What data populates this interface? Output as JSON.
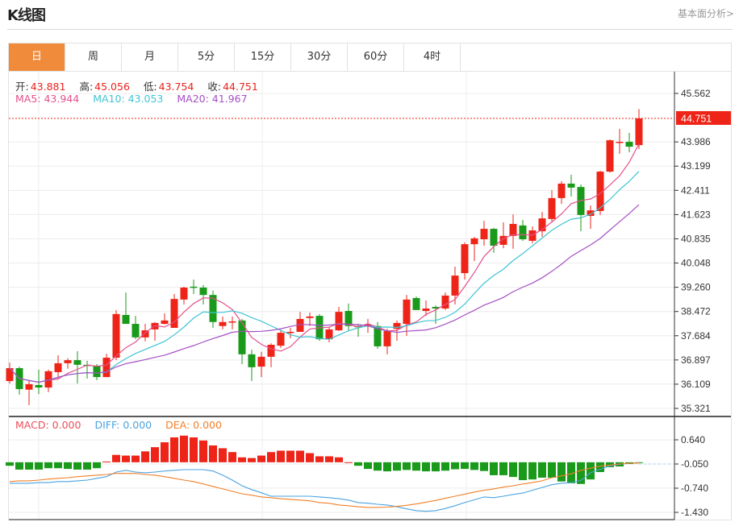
{
  "header": {
    "title": "K线图",
    "fundamental_link": "基本面分析>"
  },
  "tabs": [
    {
      "label": "日",
      "active": true
    },
    {
      "label": "周"
    },
    {
      "label": "月"
    },
    {
      "label": "5分"
    },
    {
      "label": "15分"
    },
    {
      "label": "30分"
    },
    {
      "label": "60分"
    },
    {
      "label": "4时"
    }
  ],
  "ohlc": {
    "open_label": "开:",
    "open": "43.881",
    "high_label": "高:",
    "high": "45.056",
    "low_label": "低:",
    "low": "43.754",
    "close_label": "收:",
    "close": "44.751"
  },
  "ma": {
    "ma5_label": "MA5: 43.944",
    "ma10_label": "MA10: 43.053",
    "ma20_label": "MA20: 41.967"
  },
  "macd_legend": {
    "macd": "MACD: 0.000",
    "diff": "DIFF: 0.000",
    "dea": "DEA: 0.000"
  },
  "colors": {
    "up": "#ee2418",
    "down": "#1a9a1a",
    "ma5": "#e4508c",
    "ma10": "#40c4d4",
    "ma20": "#a44fc4",
    "diff": "#4aa3e0",
    "dea": "#f0802a",
    "active_tab": "#f08b3c"
  },
  "chart_data": {
    "type": "candlestick",
    "price_axis": {
      "ticks": [
        "45.562",
        "44.774",
        "43.986",
        "43.199",
        "42.411",
        "41.623",
        "40.835",
        "40.048",
        "39.260",
        "38.472",
        "37.684",
        "36.897",
        "36.109",
        "35.321"
      ],
      "visible_ticks": [
        "45.562",
        "43.986",
        "43.199",
        "42.411",
        "41.623",
        "40.835",
        "40.048",
        "39.260",
        "38.472",
        "37.684",
        "36.897",
        "36.109",
        "35.321"
      ],
      "range": [
        35.321,
        45.562
      ]
    },
    "last_price": "44.751",
    "candles_ochl_note": "[open, close, high, low]",
    "candles": [
      [
        36.21,
        36.63,
        36.81,
        36.13
      ],
      [
        36.63,
        35.95,
        36.68,
        35.77
      ],
      [
        35.93,
        36.11,
        36.21,
        35.43
      ],
      [
        36.08,
        36.0,
        36.58,
        35.79
      ],
      [
        36.0,
        36.53,
        36.58,
        35.85
      ],
      [
        36.5,
        36.79,
        37.05,
        36.29
      ],
      [
        36.79,
        36.89,
        36.95,
        36.61
      ],
      [
        36.89,
        36.74,
        37.18,
        36.13
      ],
      [
        36.74,
        36.71,
        36.87,
        36.29
      ],
      [
        36.71,
        36.34,
        36.76,
        36.24
      ],
      [
        36.34,
        36.97,
        37.1,
        36.34
      ],
      [
        36.97,
        38.39,
        38.52,
        36.89
      ],
      [
        38.36,
        38.07,
        39.09,
        38.07
      ],
      [
        38.07,
        37.63,
        38.33,
        37.57
      ],
      [
        37.63,
        37.86,
        38.07,
        37.5
      ],
      [
        37.89,
        38.1,
        38.13,
        37.52
      ],
      [
        38.07,
        38.18,
        38.41,
        38.05
      ],
      [
        37.94,
        38.88,
        39.04,
        37.94
      ],
      [
        38.86,
        39.25,
        39.28,
        38.7
      ],
      [
        39.28,
        39.25,
        39.51,
        39.04
      ],
      [
        39.25,
        39.01,
        39.33,
        38.7
      ],
      [
        39.01,
        38.13,
        39.15,
        37.94
      ],
      [
        38.0,
        38.13,
        38.31,
        37.89
      ],
      [
        38.13,
        38.15,
        38.31,
        37.89
      ],
      [
        38.18,
        37.08,
        38.23,
        36.76
      ],
      [
        37.08,
        36.66,
        37.23,
        36.21
      ],
      [
        36.68,
        37.0,
        37.16,
        36.34
      ],
      [
        37.0,
        37.39,
        37.44,
        36.66
      ],
      [
        37.36,
        37.78,
        37.86,
        37.29
      ],
      [
        37.78,
        37.81,
        37.94,
        37.6
      ],
      [
        37.81,
        38.23,
        38.46,
        37.81
      ],
      [
        38.26,
        38.31,
        38.44,
        38.0
      ],
      [
        38.33,
        37.57,
        38.39,
        37.52
      ],
      [
        37.57,
        37.89,
        37.97,
        37.47
      ],
      [
        37.86,
        38.46,
        38.62,
        37.84
      ],
      [
        38.49,
        38.0,
        38.73,
        37.84
      ],
      [
        38.0,
        37.97,
        38.07,
        37.65
      ],
      [
        38.0,
        38.05,
        38.23,
        37.78
      ],
      [
        38.0,
        37.34,
        38.13,
        37.26
      ],
      [
        37.34,
        37.84,
        37.91,
        37.08
      ],
      [
        37.91,
        38.1,
        38.18,
        37.52
      ],
      [
        38.07,
        38.86,
        39.01,
        37.68
      ],
      [
        38.91,
        38.52,
        38.96,
        38.52
      ],
      [
        38.49,
        38.57,
        38.83,
        38.33
      ],
      [
        38.62,
        38.57,
        38.67,
        38.07
      ],
      [
        38.57,
        38.99,
        39.09,
        38.52
      ],
      [
        38.99,
        39.64,
        39.93,
        38.7
      ],
      [
        39.72,
        40.66,
        40.72,
        39.51
      ],
      [
        40.66,
        40.85,
        40.9,
        40.11
      ],
      [
        40.82,
        41.16,
        41.42,
        40.61
      ],
      [
        41.16,
        40.61,
        41.19,
        40.38
      ],
      [
        40.64,
        40.93,
        41.37,
        40.53
      ],
      [
        40.93,
        41.32,
        41.63,
        40.51
      ],
      [
        41.27,
        40.82,
        41.45,
        40.77
      ],
      [
        40.77,
        41.11,
        41.24,
        40.69
      ],
      [
        41.08,
        41.5,
        41.71,
        40.9
      ],
      [
        41.48,
        42.16,
        42.42,
        41.4
      ],
      [
        42.16,
        42.63,
        42.71,
        41.97
      ],
      [
        42.63,
        42.5,
        42.92,
        42.21
      ],
      [
        42.52,
        41.61,
        42.6,
        41.08
      ],
      [
        41.58,
        41.76,
        41.92,
        41.16
      ],
      [
        41.74,
        43.02,
        43.05,
        41.61
      ],
      [
        43.02,
        44.04,
        44.07,
        42.99
      ],
      [
        43.96,
        43.99,
        44.41,
        43.6
      ],
      [
        43.99,
        43.83,
        44.28,
        43.65
      ],
      [
        43.881,
        44.751,
        45.056,
        43.754
      ]
    ],
    "macd_axis": {
      "ticks": [
        "0.640",
        "-0.050",
        "-0.740",
        "-1.430"
      ]
    },
    "macd_hist": [
      -0.1,
      -0.21,
      -0.21,
      -0.21,
      -0.17,
      -0.17,
      -0.19,
      -0.21,
      -0.21,
      -0.17,
      0.02,
      0.21,
      0.19,
      0.19,
      0.31,
      0.43,
      0.57,
      0.71,
      0.76,
      0.71,
      0.62,
      0.48,
      0.4,
      0.29,
      0.14,
      0.12,
      0.19,
      0.29,
      0.33,
      0.33,
      0.33,
      0.26,
      0.17,
      0.17,
      0.14,
      0.0,
      -0.1,
      -0.19,
      -0.24,
      -0.26,
      -0.24,
      -0.22,
      -0.24,
      -0.26,
      -0.26,
      -0.24,
      -0.2,
      -0.19,
      -0.22,
      -0.25,
      -0.37,
      -0.37,
      -0.42,
      -0.51,
      -0.49,
      -0.44,
      -0.44,
      -0.55,
      -0.6,
      -0.62,
      -0.49,
      -0.28,
      -0.14,
      -0.12,
      -0.05,
      -0.02
    ],
    "diff": [
      -0.6,
      -0.6,
      -0.6,
      -0.58,
      -0.58,
      -0.55,
      -0.55,
      -0.53,
      -0.51,
      -0.46,
      -0.41,
      -0.28,
      -0.23,
      -0.28,
      -0.3,
      -0.28,
      -0.25,
      -0.23,
      -0.21,
      -0.21,
      -0.21,
      -0.25,
      -0.37,
      -0.51,
      -0.67,
      -0.78,
      -0.87,
      -0.97,
      -0.97,
      -0.97,
      -0.97,
      -0.97,
      -0.99,
      -1.01,
      -1.04,
      -1.08,
      -1.15,
      -1.17,
      -1.2,
      -1.22,
      -1.27,
      -1.33,
      -1.38,
      -1.4,
      -1.38,
      -1.32,
      -1.24,
      -1.15,
      -1.07,
      -0.99,
      -1.01,
      -0.97,
      -0.92,
      -0.88,
      -0.8,
      -0.72,
      -0.64,
      -0.6,
      -0.58,
      -0.52,
      -0.3,
      -0.2,
      -0.1,
      -0.06,
      -0.03,
      -0.02
    ],
    "dea": [
      -0.55,
      -0.53,
      -0.53,
      -0.51,
      -0.48,
      -0.46,
      -0.44,
      -0.41,
      -0.39,
      -0.37,
      -0.35,
      -0.32,
      -0.32,
      -0.32,
      -0.35,
      -0.37,
      -0.41,
      -0.46,
      -0.51,
      -0.55,
      -0.62,
      -0.69,
      -0.76,
      -0.83,
      -0.9,
      -0.94,
      -0.99,
      -1.01,
      -1.04,
      -1.06,
      -1.08,
      -1.1,
      -1.15,
      -1.17,
      -1.22,
      -1.24,
      -1.27,
      -1.29,
      -1.29,
      -1.28,
      -1.26,
      -1.23,
      -1.19,
      -1.14,
      -1.09,
      -1.03,
      -0.97,
      -0.91,
      -0.85,
      -0.8,
      -0.76,
      -0.71,
      -0.67,
      -0.62,
      -0.58,
      -0.53,
      -0.44,
      -0.39,
      -0.33,
      -0.23,
      -0.17,
      -0.11,
      -0.08,
      -0.05,
      -0.03,
      -0.02
    ],
    "grid": true
  }
}
